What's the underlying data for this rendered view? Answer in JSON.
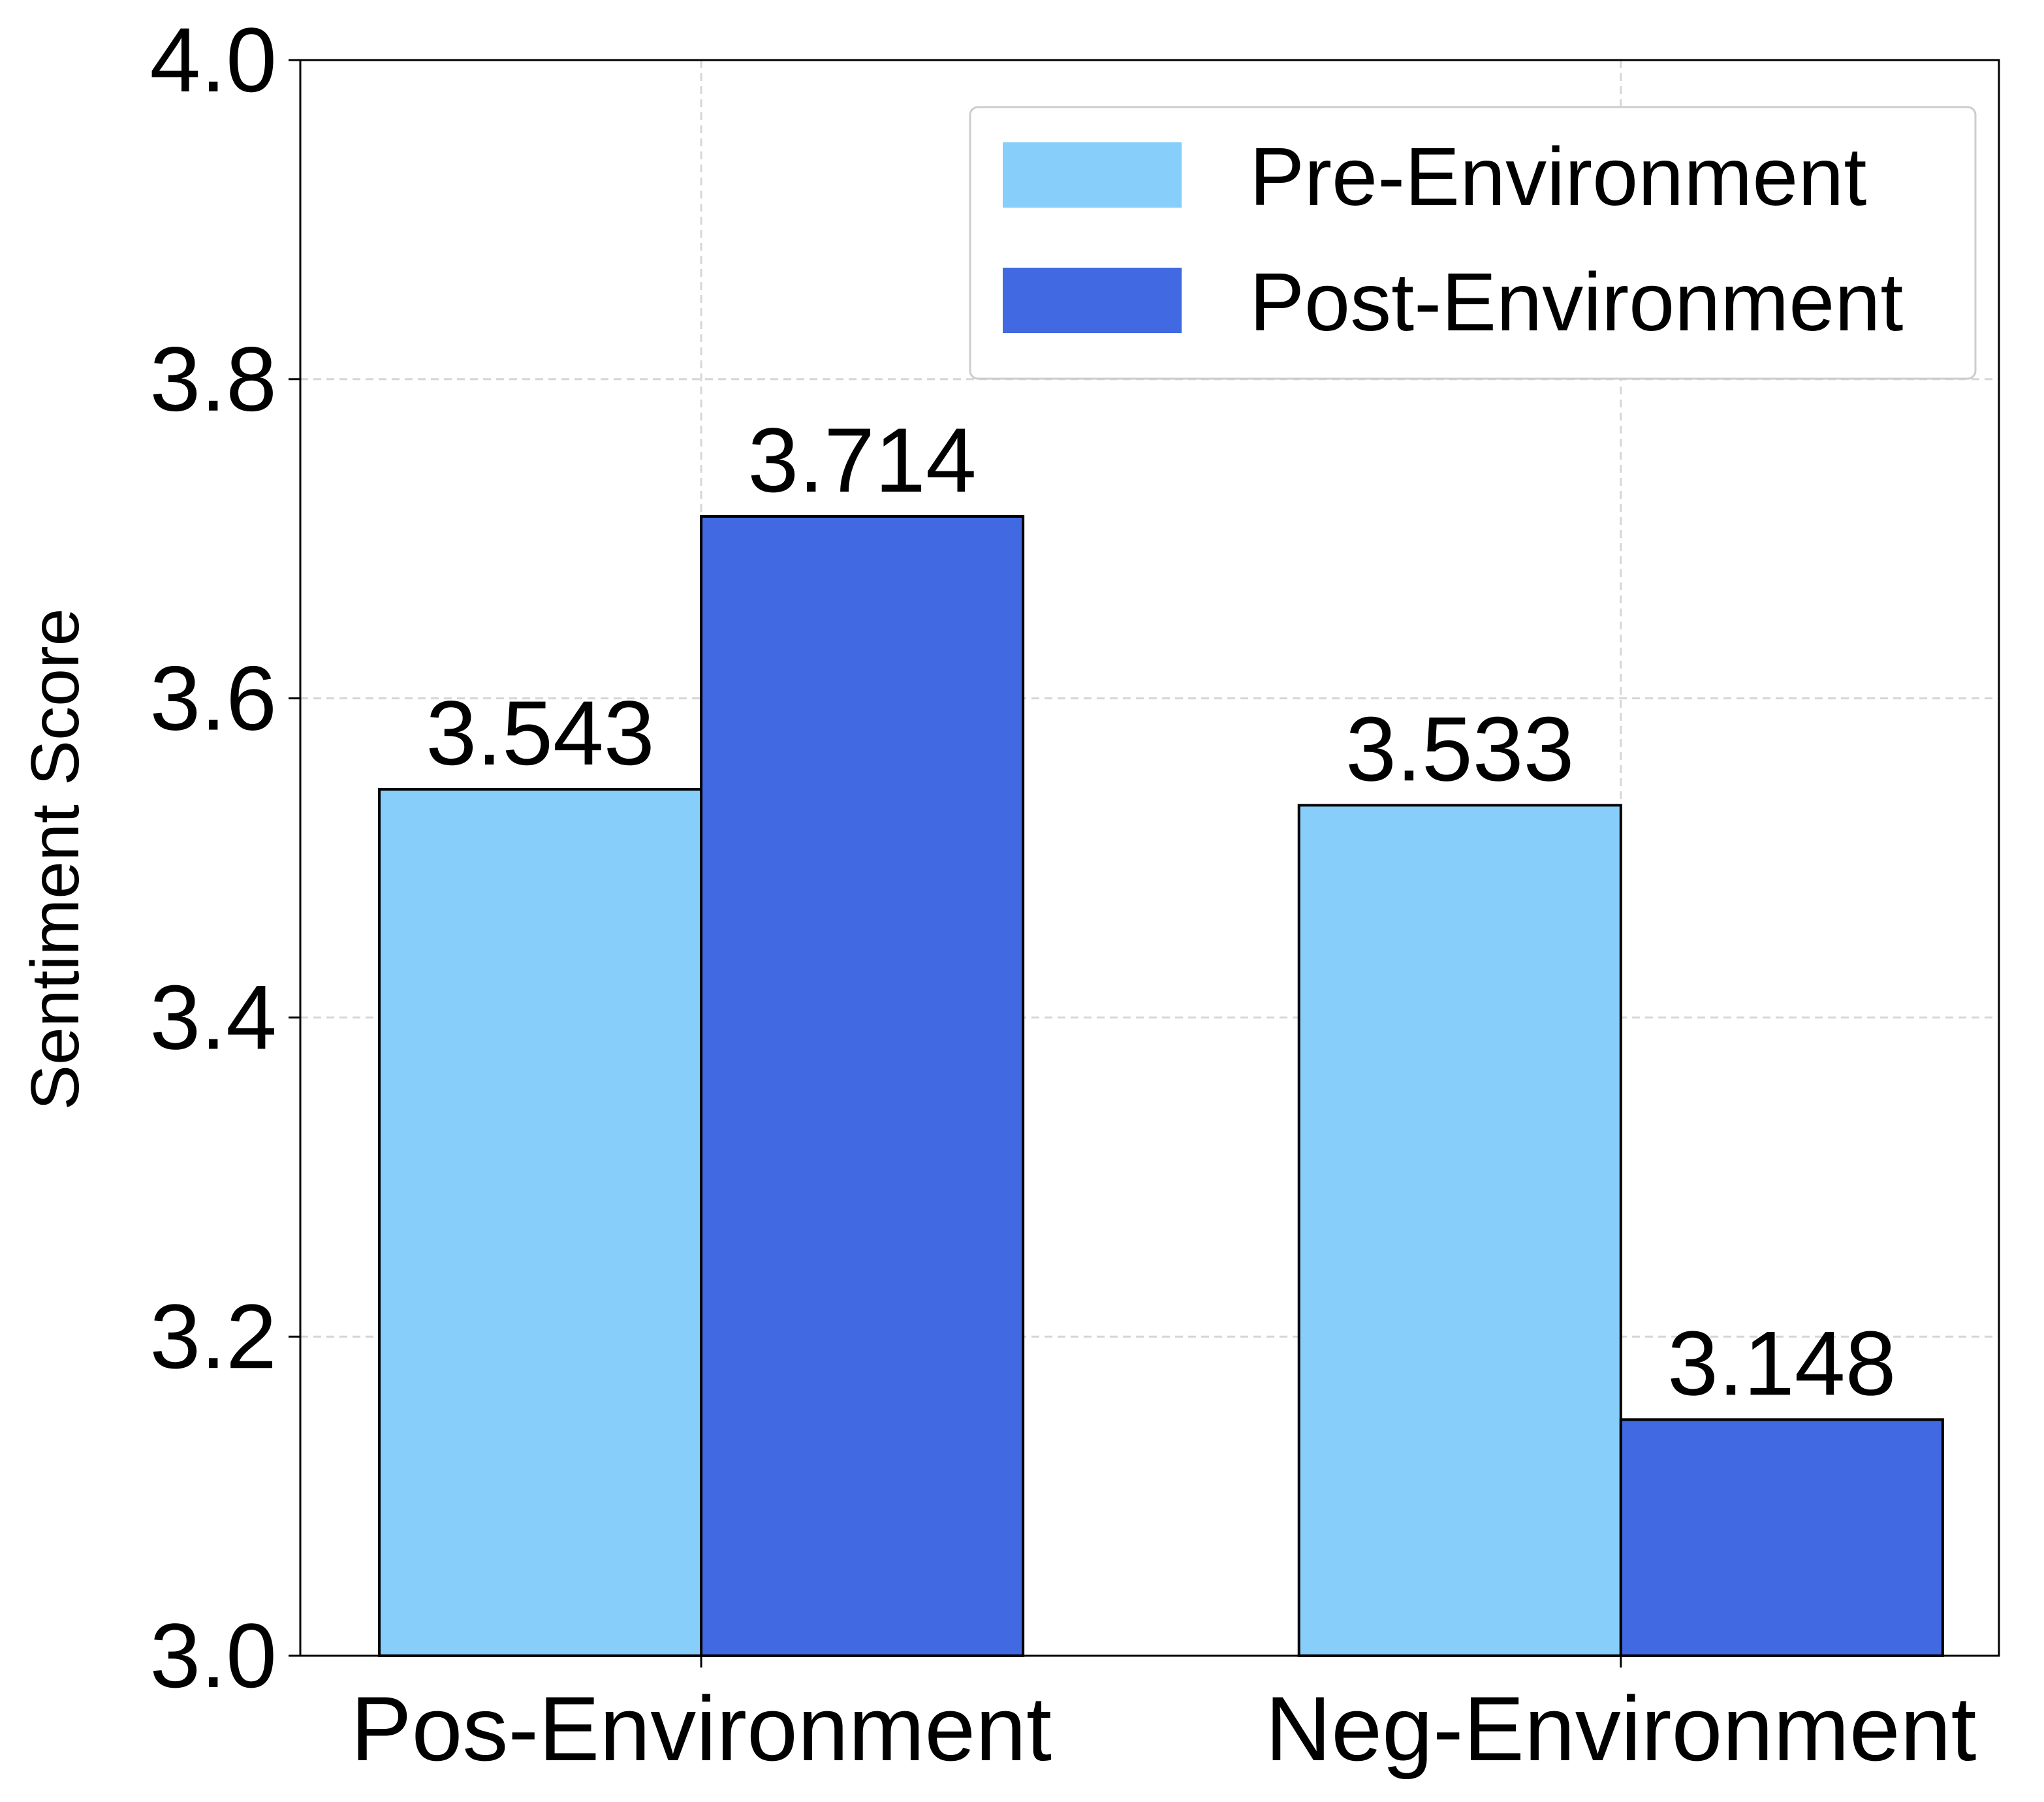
{
  "chart_data": {
    "type": "bar",
    "categories": [
      "Pos-Environment",
      "Neg-Environment"
    ],
    "series": [
      {
        "name": "Pre-Environment",
        "values": [
          3.543,
          3.533
        ],
        "color": "#87CEFA"
      },
      {
        "name": "Post-Environment",
        "values": [
          3.714,
          3.148
        ],
        "color": "#4169E1"
      }
    ],
    "data_labels": [
      [
        "3.543",
        "3.533"
      ],
      [
        "3.714",
        "3.148"
      ]
    ],
    "title": "",
    "xlabel": "",
    "ylabel": "Sentiment Score",
    "ylim": [
      3.0,
      4.0
    ],
    "yticks": [
      "3.0",
      "3.2",
      "3.4",
      "3.6",
      "3.8",
      "4.0"
    ],
    "ytick_values": [
      3.0,
      3.2,
      3.4,
      3.6,
      3.8,
      4.0
    ],
    "grid": true,
    "legend_position": "top-right",
    "bar_edge_color": "#000000"
  }
}
